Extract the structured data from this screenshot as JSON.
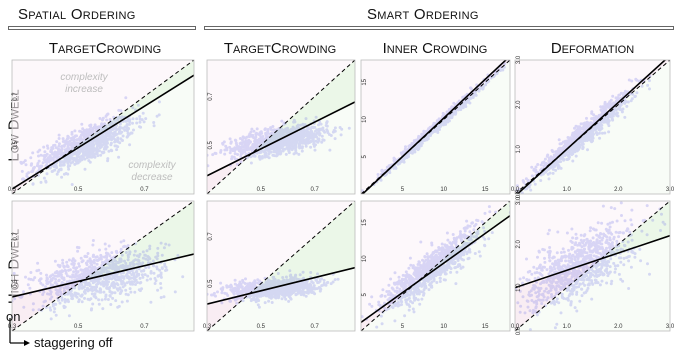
{
  "headers": {
    "spatial": "Spatial Ordering",
    "smart": "Smart Ordering"
  },
  "columns": [
    "TargetCrowding",
    "TargetCrowding",
    "Inner Crowding",
    "Deformation"
  ],
  "rows": [
    "Low Dwell",
    "High Dwell"
  ],
  "annotations": {
    "complexity_increase": [
      "complexity",
      "increase"
    ],
    "complexity_decrease": [
      "complexity",
      "decrease"
    ]
  },
  "axis_legend": {
    "y": "on",
    "x": "staggering off"
  },
  "colors": {
    "points": "#7b7ce6",
    "increase_fill": "#f6e6ee",
    "decrease_fill": "#e3f4dd",
    "regression": "#000000",
    "identity": "#000000"
  },
  "chart_data": [
    {
      "type": "scatter",
      "row": "Low Dwell",
      "column": "TargetCrowding",
      "xlim": [
        0.3,
        0.85
      ],
      "ylim": [
        0.3,
        0.85
      ],
      "x_ticks": [
        "0.3",
        "0.5",
        "0.7"
      ],
      "y_ticks": [
        "0.5",
        "0.7"
      ],
      "x_tick_values": [
        0.3,
        0.5,
        0.7
      ],
      "y_tick_values": [
        0.5,
        0.7
      ],
      "cloud": {
        "x_mean": 0.52,
        "y_mean": 0.5,
        "x_sd": 0.075,
        "y_sd": 0.06,
        "slope_dir": 0.8
      },
      "regression": {
        "slope": 0.85,
        "intercept": 0.065
      },
      "identity": {
        "slope": 1,
        "intercept": 0
      },
      "annotated": true
    },
    {
      "type": "scatter",
      "row": "Low Dwell",
      "column": "TargetCrowding",
      "xlim": [
        0.3,
        0.85
      ],
      "ylim": [
        0.3,
        0.85
      ],
      "x_ticks": [
        "0.5",
        "0.7"
      ],
      "y_ticks": [
        "0.5",
        "0.7"
      ],
      "x_tick_values": [
        0.5,
        0.7
      ],
      "y_tick_values": [
        0.5,
        0.7
      ],
      "cloud": {
        "x_mean": 0.57,
        "y_mean": 0.52,
        "x_sd": 0.09,
        "y_sd": 0.045,
        "slope_dir": 0.45
      },
      "regression": {
        "slope": 0.55,
        "intercept": 0.21
      },
      "identity": {
        "slope": 1,
        "intercept": 0
      },
      "annotated": false
    },
    {
      "type": "scatter",
      "row": "Low Dwell",
      "column": "Inner Crowding",
      "xlim": [
        0,
        18
      ],
      "ylim": [
        0,
        18
      ],
      "x_ticks": [
        "5",
        "10",
        "15"
      ],
      "y_ticks": [
        "5",
        "10",
        "15"
      ],
      "x_tick_values": [
        5,
        10,
        15
      ],
      "y_tick_values": [
        5,
        10,
        15
      ],
      "cloud": {
        "x_mean": 9,
        "y_mean": 9,
        "x_sd": 3.2,
        "y_sd": 3.2,
        "slope_dir": 1.0,
        "spread": 0.35
      },
      "regression": {
        "slope": 1.04,
        "intercept": -0.2
      },
      "identity": {
        "slope": 1,
        "intercept": 0
      },
      "annotated": false
    },
    {
      "type": "scatter",
      "row": "Low Dwell",
      "column": "Deformation",
      "xlim": [
        0,
        3
      ],
      "ylim": [
        0,
        3
      ],
      "x_ticks": [
        "0.0",
        "1.0",
        "2.0",
        "3.0"
      ],
      "y_ticks": [
        "0.0",
        "1.0",
        "2.0",
        "3.0"
      ],
      "x_tick_values": [
        0,
        1,
        2,
        3
      ],
      "y_tick_values": [
        0,
        1,
        2,
        3
      ],
      "cloud": {
        "x_mean": 1.3,
        "y_mean": 1.3,
        "x_sd": 0.5,
        "y_sd": 0.5,
        "slope_dir": 1.0,
        "spread": 0.12
      },
      "regression": {
        "slope": 1.05,
        "intercept": -0.05
      },
      "identity": {
        "slope": 1,
        "intercept": 0
      },
      "annotated": false
    },
    {
      "type": "scatter",
      "row": "High Dwell",
      "column": "TargetCrowding",
      "xlim": [
        0.3,
        0.85
      ],
      "ylim": [
        0.3,
        0.85
      ],
      "x_ticks": [
        "0.3",
        "0.5",
        "0.7"
      ],
      "y_ticks": [
        "0.5",
        "0.7"
      ],
      "x_tick_values": [
        0.3,
        0.5,
        0.7
      ],
      "y_tick_values": [
        0.5,
        0.7
      ],
      "cloud": {
        "x_mean": 0.56,
        "y_mean": 0.53,
        "x_sd": 0.1,
        "y_sd": 0.085,
        "slope_dir": 0.35
      },
      "regression": {
        "slope": 0.33,
        "intercept": 0.345
      },
      "identity": {
        "slope": 1,
        "intercept": 0
      },
      "annotated": false
    },
    {
      "type": "scatter",
      "row": "High Dwell",
      "column": "TargetCrowding",
      "xlim": [
        0.3,
        0.85
      ],
      "ylim": [
        0.3,
        0.85
      ],
      "x_ticks": [
        "0.3",
        "0.5",
        "0.7"
      ],
      "y_ticks": [
        "0.5",
        "0.7"
      ],
      "x_tick_values": [
        0.3,
        0.5,
        0.7
      ],
      "y_tick_values": [
        0.5,
        0.7
      ],
      "cloud": {
        "x_mean": 0.55,
        "y_mean": 0.48,
        "x_sd": 0.08,
        "y_sd": 0.035,
        "slope_dir": 0.25
      },
      "regression": {
        "slope": 0.28,
        "intercept": 0.33
      },
      "identity": {
        "slope": 1,
        "intercept": 0
      },
      "annotated": false
    },
    {
      "type": "scatter",
      "row": "High Dwell",
      "column": "Inner Crowding",
      "xlim": [
        0,
        18
      ],
      "ylim": [
        0,
        18
      ],
      "x_ticks": [
        "5",
        "10",
        "15"
      ],
      "y_ticks": [
        "5",
        "10",
        "15"
      ],
      "x_tick_values": [
        5,
        10,
        15
      ],
      "y_tick_values": [
        5,
        10,
        15
      ],
      "cloud": {
        "x_mean": 8.5,
        "y_mean": 8.5,
        "x_sd": 3.0,
        "y_sd": 3.0,
        "slope_dir": 0.85,
        "spread": 1.3
      },
      "regression": {
        "slope": 0.82,
        "intercept": 1.2
      },
      "identity": {
        "slope": 1,
        "intercept": 0
      },
      "annotated": false
    },
    {
      "type": "scatter",
      "row": "High Dwell",
      "column": "Deformation",
      "xlim": [
        0,
        3
      ],
      "ylim": [
        0,
        3
      ],
      "x_ticks": [
        "0.0",
        "1.0",
        "2.0",
        "3.0"
      ],
      "y_ticks": [
        "0.0",
        "1.0",
        "2.0",
        "3.0"
      ],
      "x_tick_values": [
        0,
        1,
        2,
        3
      ],
      "y_tick_values": [
        0,
        1,
        2,
        3
      ],
      "cloud": {
        "x_mean": 1.25,
        "y_mean": 1.5,
        "x_sd": 0.5,
        "y_sd": 0.4,
        "slope_dir": 0.6,
        "spread": 0.35
      },
      "regression": {
        "slope": 0.4,
        "intercept": 1.0
      },
      "identity": {
        "slope": 1,
        "intercept": 0
      },
      "annotated": false
    }
  ]
}
